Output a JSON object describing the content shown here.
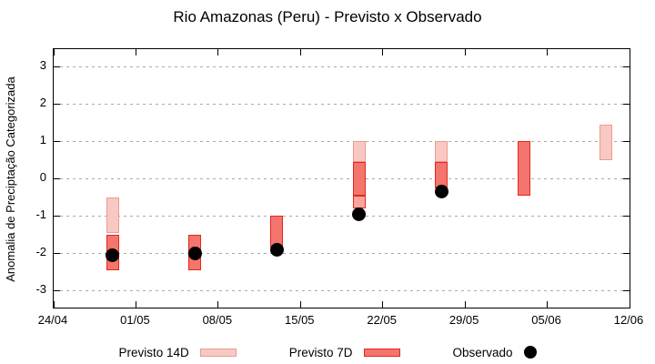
{
  "chart_data": {
    "type": "bar",
    "subtype": "categorized-anomaly interval bars (forecast ranges) with observed scatter dots",
    "title": "Rio Amazonas (Peru) - Previsto x Observado",
    "ylabel": "Anomalia de Preciptação Categorizada",
    "xlabel": "",
    "grid": "horizontal dashed",
    "ylim": [
      -3.46,
      3.47
    ],
    "y_ticks": [
      3,
      2,
      1,
      0,
      -1,
      -2,
      -3
    ],
    "x_ticks": [
      {
        "day": 0,
        "label": "24/04"
      },
      {
        "day": 7,
        "label": "01/05"
      },
      {
        "day": 14,
        "label": "08/05"
      },
      {
        "day": 21,
        "label": "15/05"
      },
      {
        "day": 28,
        "label": "22/05"
      },
      {
        "day": 35,
        "label": "29/05"
      },
      {
        "day": 42,
        "label": "05/06"
      },
      {
        "day": 49,
        "label": "12/06"
      }
    ],
    "xlim_days": [
      0,
      49
    ],
    "groups": [
      {
        "date": "29/04",
        "day": 5,
        "segments": [
          {
            "from": -0.5,
            "to": -1.45,
            "style": "light"
          },
          {
            "from": -1.5,
            "to": -2.45,
            "style": "dark"
          }
        ],
        "observed": -2.05
      },
      {
        "date": "06/05",
        "day": 12,
        "segments": [
          {
            "from": -1.5,
            "to": -2.45,
            "style": "dark"
          }
        ],
        "observed": -2.0
      },
      {
        "date": "13/05",
        "day": 19,
        "segments": [
          {
            "from": -1.0,
            "to": -1.85,
            "style": "dark"
          }
        ],
        "observed": -1.9
      },
      {
        "date": "20/05",
        "day": 26,
        "segments": [
          {
            "from": 1.0,
            "to": 0.45,
            "style": "light"
          },
          {
            "from": 0.45,
            "to": -0.45,
            "style": "dark"
          },
          {
            "from": -0.45,
            "to": -0.8,
            "style": "mid"
          }
        ],
        "observed": -0.95
      },
      {
        "date": "27/05",
        "day": 33,
        "segments": [
          {
            "from": 1.0,
            "to": 0.45,
            "style": "light"
          },
          {
            "from": 0.45,
            "to": -0.25,
            "style": "dark"
          }
        ],
        "observed": -0.35
      },
      {
        "date": "03/06",
        "day": 40,
        "segments": [
          {
            "from": 1.0,
            "to": -0.45,
            "style": "dark"
          }
        ],
        "observed": null
      },
      {
        "date": "10/06",
        "day": 47,
        "segments": [
          {
            "from": 1.45,
            "to": 0.5,
            "style": "light"
          }
        ],
        "observed": null
      }
    ],
    "legend": [
      {
        "label": "Previsto 14D",
        "marker": "light-swatch"
      },
      {
        "label": "Previsto 7D",
        "marker": "dark-swatch"
      },
      {
        "label": "Observado",
        "marker": "black-dot"
      }
    ],
    "legend_position": "bottom-center",
    "colors": {
      "light_fill": "#f8c8c2",
      "light_border": "#ee9a90",
      "dark_fill": "#f4756d",
      "dark_border": "#e3281b",
      "mid_fill": "#f8a39c",
      "observed": "#000000",
      "grid": "#a9a9a9",
      "axis": "#000000"
    }
  }
}
